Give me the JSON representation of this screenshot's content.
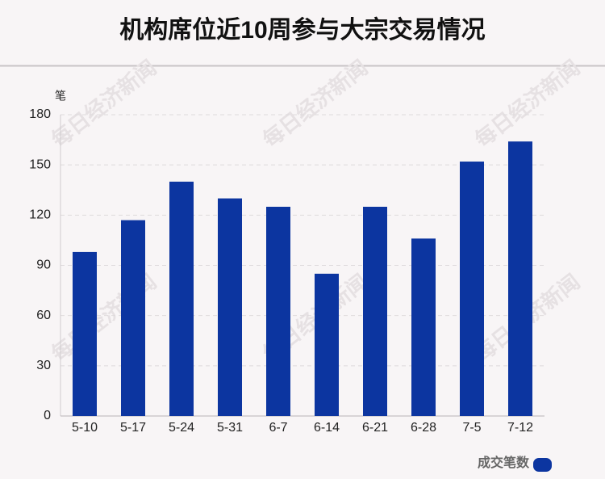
{
  "chart_data": {
    "type": "bar",
    "title": "机构席位近10周参与大宗交易情况",
    "y_unit": "笔",
    "watermark": "每日经济新闻",
    "categories": [
      "5-10",
      "5-17",
      "5-24",
      "5-31",
      "6-7",
      "6-14",
      "6-21",
      "6-28",
      "7-5",
      "7-12"
    ],
    "series": [
      {
        "name": "成交笔数",
        "color": "#0c35a0",
        "values": [
          98,
          117,
          140,
          130,
          125,
          85,
          125,
          106,
          152,
          164
        ]
      }
    ],
    "ylim": [
      0,
      180
    ],
    "yticks": [
      0,
      30,
      60,
      90,
      120,
      150,
      180
    ],
    "grid": true,
    "legend": "bottom-right"
  }
}
